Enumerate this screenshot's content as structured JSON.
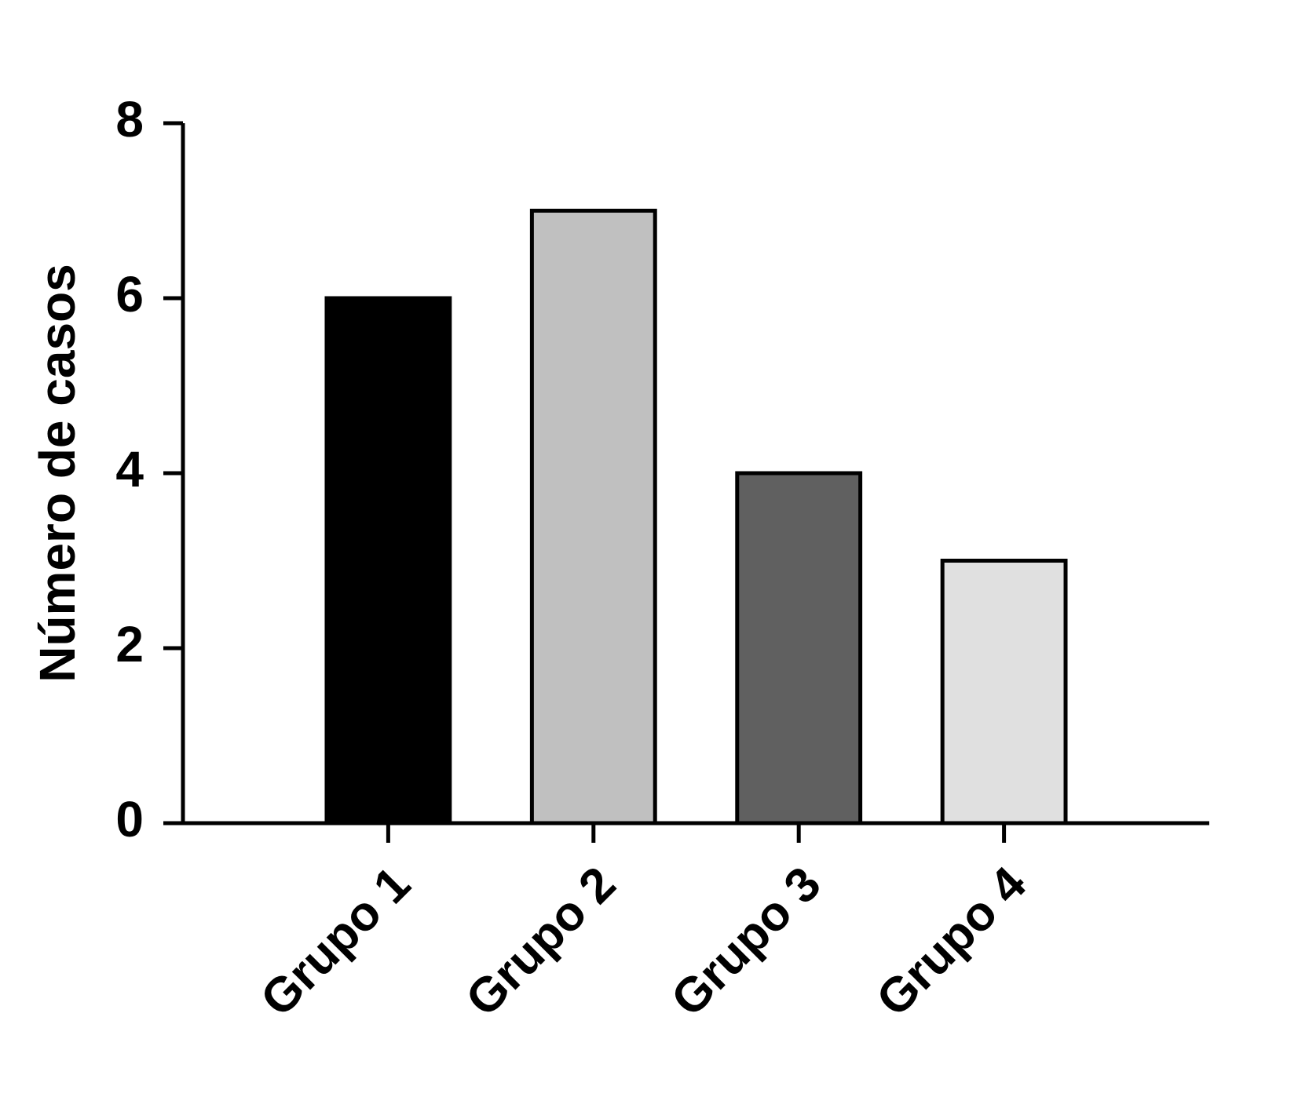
{
  "chart_data": {
    "type": "bar",
    "y_label": "Número de casos",
    "categories": [
      "Grupo 1",
      "Grupo 2",
      "Grupo 3",
      "Grupo 4"
    ],
    "values": [
      6,
      7,
      4,
      3
    ],
    "colors": [
      "#000000",
      "#c0c0c0",
      "#606060",
      "#e0e0e0"
    ],
    "ylim": [
      0,
      8
    ],
    "yticks": [
      0,
      2,
      4,
      6,
      8
    ]
  }
}
